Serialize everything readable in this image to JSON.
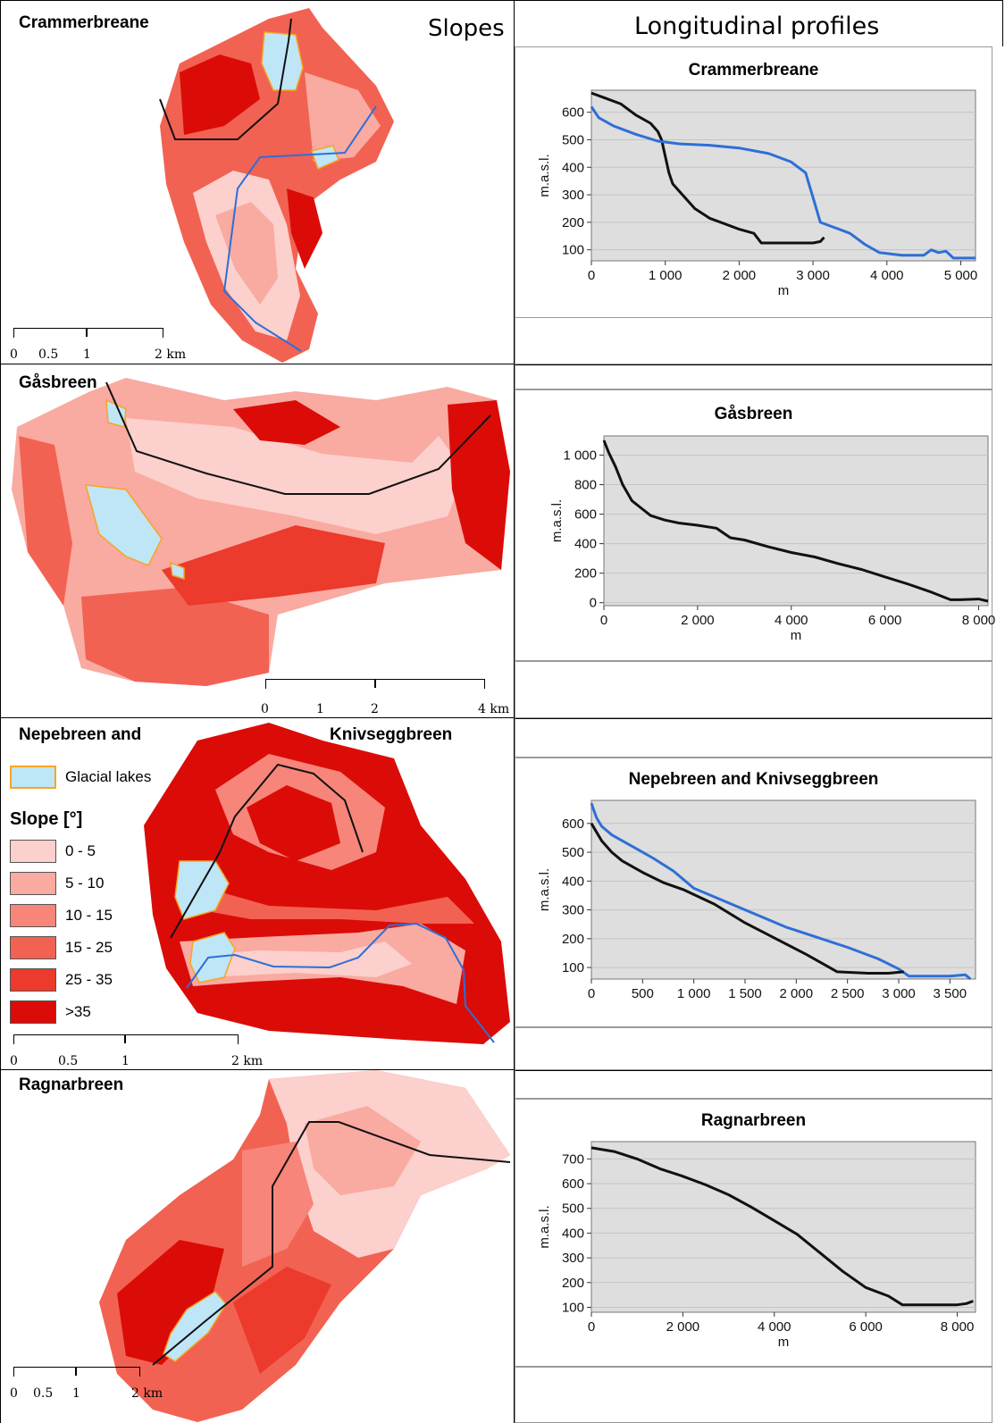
{
  "headers": {
    "slopes": "Slopes",
    "profiles": "Longitudinal profiles"
  },
  "panels": [
    {
      "name": "Crammerbreane",
      "scale_labels": [
        "0",
        "0.5",
        "1",
        "2 km"
      ]
    },
    {
      "name": "Gåsbreen",
      "scale_labels": [
        "0",
        "1",
        "2",
        "4 km"
      ]
    },
    {
      "name_left": "Nepebreen and",
      "name_right": "Knivseggbreen",
      "scale_labels": [
        "0",
        "0.5",
        "1",
        "2 km"
      ]
    },
    {
      "name": "Ragnarbreen",
      "scale_labels": [
        "0",
        "0.5",
        "1",
        "2 km"
      ]
    }
  ],
  "legend": {
    "lakes_label": "Glacial lakes",
    "lakes_color": "#bfe6f7",
    "lakes_border": "#f5a623",
    "slope_title": "Slope [°]",
    "classes": [
      {
        "label": "0 - 5",
        "color": "#fcd0cc"
      },
      {
        "label": "5 - 10",
        "color": "#f9aaa1"
      },
      {
        "label": "10 - 15",
        "color": "#f7857a"
      },
      {
        "label": "15 - 25",
        "color": "#f26252"
      },
      {
        "label": "25 - 35",
        "color": "#ec3a2c"
      },
      {
        "label": ">35",
        "color": "#db0c08"
      }
    ]
  },
  "colors": {
    "black_profile": "#111111",
    "blue_profile": "#2e6fd6",
    "plot_bg": "#dedede",
    "grid": "#c4c4c4"
  },
  "chart_data": [
    {
      "type": "line",
      "title": "Crammerbreane",
      "xlabel": "m",
      "ylabel": "m.a.s.l.",
      "xlim": [
        0,
        5200
      ],
      "ylim": [
        60,
        680
      ],
      "xticks": [
        0,
        1000,
        2000,
        3000,
        4000,
        5000
      ],
      "xtick_labels": [
        "0",
        "1 000",
        "2 000",
        "3 000",
        "4 000",
        "5 000"
      ],
      "yticks": [
        100,
        200,
        300,
        400,
        500,
        600
      ],
      "yticks_labels": [
        "100",
        "200",
        "300",
        "400",
        "500",
        "600"
      ],
      "series": [
        {
          "color": "black",
          "x": [
            0,
            200,
            400,
            600,
            800,
            900,
            950,
            1000,
            1050,
            1100,
            1200,
            1400,
            1600,
            1800,
            2000,
            2200,
            2300,
            2500,
            2800,
            3000,
            3100,
            3150
          ],
          "y": [
            670,
            650,
            630,
            590,
            560,
            530,
            500,
            440,
            380,
            340,
            310,
            250,
            215,
            195,
            175,
            160,
            125,
            125,
            125,
            125,
            130,
            145
          ]
        },
        {
          "color": "blue",
          "x": [
            0,
            100,
            300,
            600,
            900,
            1200,
            1600,
            2000,
            2400,
            2700,
            2900,
            3000,
            3100,
            3300,
            3500,
            3700,
            3900,
            4200,
            4500,
            4600,
            4700,
            4800,
            4900,
            5000,
            5200
          ],
          "y": [
            620,
            580,
            550,
            520,
            495,
            485,
            480,
            470,
            450,
            420,
            380,
            290,
            200,
            180,
            160,
            120,
            90,
            80,
            80,
            100,
            90,
            95,
            70,
            70,
            70
          ]
        }
      ]
    },
    {
      "type": "line",
      "title": "Gåsbreen",
      "xlabel": "m",
      "ylabel": "m.a.s.l.",
      "xlim": [
        0,
        8200
      ],
      "ylim": [
        -20,
        1130
      ],
      "xticks": [
        0,
        2000,
        4000,
        6000,
        8000
      ],
      "xtick_labels": [
        "0",
        "2 000",
        "4 000",
        "6 000",
        "8 000"
      ],
      "yticks": [
        0,
        200,
        400,
        600,
        800,
        1000
      ],
      "yticks_labels": [
        "0",
        "200",
        "400",
        "600",
        "800",
        "1 000"
      ],
      "series": [
        {
          "color": "black",
          "x": [
            0,
            100,
            250,
            400,
            600,
            800,
            1000,
            1300,
            1600,
            2000,
            2400,
            2700,
            3000,
            3500,
            4000,
            4500,
            5000,
            5500,
            6000,
            6500,
            7000,
            7400,
            7600,
            8000,
            8200
          ],
          "y": [
            1100,
            1020,
            920,
            800,
            690,
            640,
            590,
            560,
            540,
            525,
            505,
            440,
            425,
            380,
            340,
            310,
            265,
            225,
            175,
            125,
            70,
            20,
            20,
            25,
            10
          ]
        }
      ]
    },
    {
      "type": "line",
      "title": "Nepebreen and Knivseggbreen",
      "xlabel": "",
      "ylabel": "m.a.s.l.",
      "xlim": [
        0,
        3750
      ],
      "ylim": [
        60,
        680
      ],
      "xticks": [
        0,
        500,
        1000,
        1500,
        2000,
        2500,
        3000,
        3500
      ],
      "xtick_labels": [
        "0",
        "500",
        "1 000",
        "1 500",
        "2 000",
        "2 500",
        "3 000",
        "3 500"
      ],
      "yticks": [
        100,
        200,
        300,
        400,
        500,
        600
      ],
      "yticks_labels": [
        "100",
        "200",
        "300",
        "400",
        "500",
        "600"
      ],
      "series": [
        {
          "color": "blue",
          "x": [
            0,
            50,
            100,
            200,
            400,
            600,
            800,
            1000,
            1300,
            1600,
            1900,
            2200,
            2500,
            2800,
            3000,
            3100,
            3300,
            3500,
            3650,
            3700
          ],
          "y": [
            670,
            620,
            590,
            560,
            520,
            480,
            435,
            375,
            330,
            285,
            240,
            205,
            170,
            130,
            95,
            70,
            70,
            70,
            75,
            60
          ]
        },
        {
          "color": "black",
          "x": [
            0,
            100,
            200,
            300,
            500,
            700,
            900,
            1200,
            1500,
            1800,
            2100,
            2400,
            2700,
            2900,
            3050
          ],
          "y": [
            600,
            540,
            500,
            470,
            430,
            395,
            370,
            320,
            255,
            200,
            145,
            85,
            80,
            80,
            85
          ]
        }
      ]
    },
    {
      "type": "line",
      "title": "Ragnarbreen",
      "xlabel": "m",
      "ylabel": "m.a.s.l.",
      "xlim": [
        0,
        8400
      ],
      "ylim": [
        80,
        770
      ],
      "xticks": [
        0,
        2000,
        4000,
        6000,
        8000
      ],
      "xtick_labels": [
        "0",
        "2 000",
        "4 000",
        "6 000",
        "8 000"
      ],
      "yticks": [
        100,
        200,
        300,
        400,
        500,
        600,
        700
      ],
      "yticks_labels": [
        "100",
        "200",
        "300",
        "400",
        "500",
        "600",
        "700"
      ],
      "series": [
        {
          "color": "black",
          "x": [
            0,
            500,
            1000,
            1500,
            2000,
            2500,
            3000,
            3500,
            4000,
            4500,
            5000,
            5500,
            6000,
            6500,
            6800,
            7200,
            7600,
            8000,
            8200,
            8350
          ],
          "y": [
            745,
            730,
            700,
            660,
            630,
            595,
            555,
            505,
            450,
            395,
            320,
            245,
            180,
            145,
            110,
            110,
            110,
            110,
            115,
            125
          ]
        }
      ]
    }
  ]
}
